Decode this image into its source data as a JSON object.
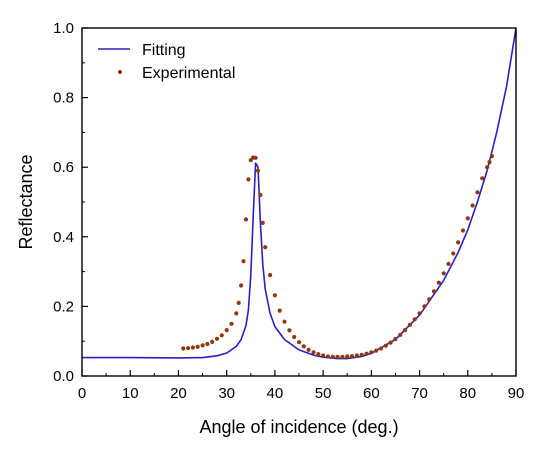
{
  "chart_data": {
    "type": "line",
    "title": "",
    "xlabel": "Angle of incidence (deg.)",
    "ylabel": "Reflectance",
    "xlim": [
      0,
      90
    ],
    "ylim": [
      0,
      1.0
    ],
    "x_ticks": [
      0,
      10,
      20,
      30,
      40,
      50,
      60,
      70,
      80,
      90
    ],
    "x_tick_labels": [
      "0",
      "10",
      "20",
      "30",
      "40",
      "50",
      "60",
      "70",
      "80",
      "90"
    ],
    "y_ticks": [
      0.0,
      0.2,
      0.4,
      0.6,
      0.8,
      1.0
    ],
    "y_tick_labels": [
      "0.0",
      "0.2",
      "0.4",
      "0.6",
      "0.8",
      "1.0"
    ],
    "grid": false,
    "legend": "top-left",
    "series": [
      {
        "name": "Fitting",
        "style": "line",
        "color": "#2a1fc8",
        "x": [
          0,
          10,
          20,
          25,
          28,
          30,
          32,
          33,
          34,
          34.5,
          35,
          35.5,
          36,
          36.5,
          37,
          37.5,
          38,
          39,
          40,
          42,
          45,
          48,
          50,
          53,
          55,
          58,
          60,
          65,
          70,
          75,
          78,
          80,
          82,
          84,
          86,
          88,
          90
        ],
        "y": [
          0.053,
          0.053,
          0.052,
          0.053,
          0.058,
          0.066,
          0.085,
          0.105,
          0.145,
          0.19,
          0.29,
          0.46,
          0.612,
          0.6,
          0.44,
          0.32,
          0.25,
          0.18,
          0.142,
          0.105,
          0.075,
          0.06,
          0.054,
          0.05,
          0.05,
          0.056,
          0.065,
          0.105,
          0.175,
          0.275,
          0.355,
          0.42,
          0.5,
          0.59,
          0.7,
          0.83,
          1.0
        ]
      },
      {
        "name": "Experimental",
        "style": "scatter",
        "color": "#8b3a10",
        "x": [
          21,
          22,
          23,
          24,
          25,
          26,
          27,
          28,
          29,
          30,
          31,
          32,
          32.5,
          33,
          33.5,
          34,
          34.5,
          35,
          35.5,
          36,
          36.5,
          37,
          37.5,
          38,
          39,
          40,
          41,
          42,
          43,
          44,
          45,
          46,
          47,
          48,
          49,
          50,
          51,
          52,
          53,
          54,
          55,
          56,
          57,
          58,
          59,
          60,
          61,
          62,
          63,
          64,
          65,
          66,
          67,
          68,
          69,
          70,
          71,
          72,
          73,
          74,
          75,
          76,
          77,
          78,
          79,
          80,
          81,
          82,
          83,
          84,
          84.5,
          85
        ],
        "y": [
          0.079,
          0.08,
          0.082,
          0.084,
          0.088,
          0.092,
          0.098,
          0.107,
          0.117,
          0.132,
          0.15,
          0.18,
          0.21,
          0.26,
          0.33,
          0.45,
          0.565,
          0.62,
          0.628,
          0.627,
          0.59,
          0.52,
          0.44,
          0.37,
          0.29,
          0.232,
          0.188,
          0.156,
          0.131,
          0.112,
          0.097,
          0.085,
          0.075,
          0.068,
          0.063,
          0.059,
          0.056,
          0.055,
          0.055,
          0.055,
          0.056,
          0.057,
          0.059,
          0.061,
          0.064,
          0.068,
          0.073,
          0.079,
          0.087,
          0.096,
          0.106,
          0.118,
          0.132,
          0.147,
          0.163,
          0.18,
          0.2,
          0.22,
          0.243,
          0.268,
          0.295,
          0.322,
          0.352,
          0.384,
          0.418,
          0.453,
          0.49,
          0.528,
          0.568,
          0.6,
          0.615,
          0.632
        ]
      }
    ]
  }
}
